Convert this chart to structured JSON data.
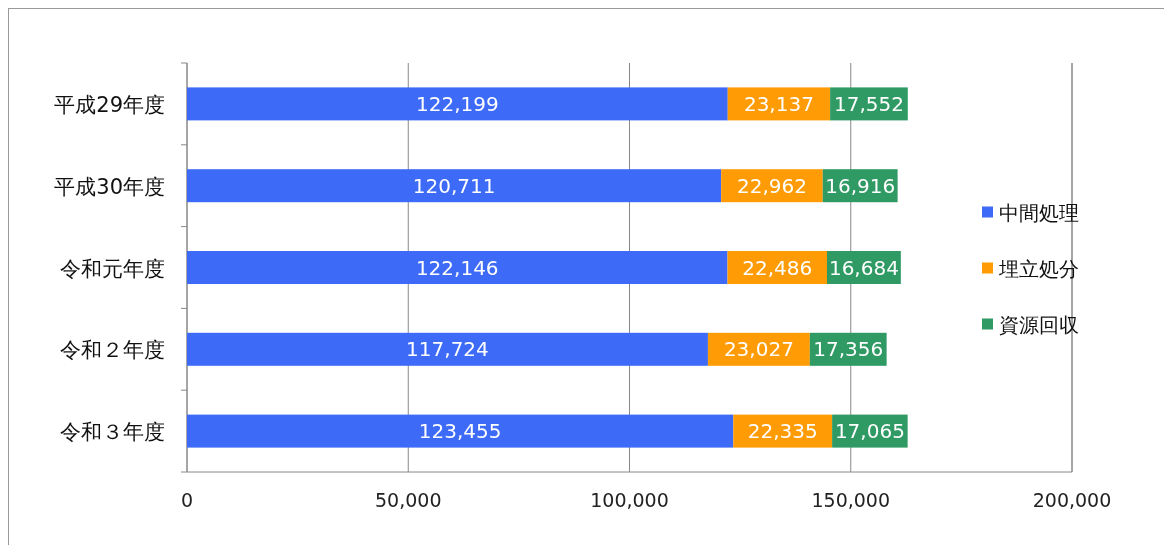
{
  "chart_data": {
    "type": "bar",
    "orientation": "horizontal",
    "stacked": true,
    "categories": [
      "平成29年度",
      "平成30年度",
      "令和元年度",
      "令和２年度",
      "令和３年度"
    ],
    "series": [
      {
        "name": "中間処理",
        "color": "#3d6bf7",
        "values": [
          122199,
          120711,
          122146,
          117724,
          123455
        ],
        "value_labels": [
          "122,199",
          "120,711",
          "122,146",
          "117,724",
          "123,455"
        ]
      },
      {
        "name": "埋立処分",
        "color": "#ff9b05",
        "values": [
          23137,
          22962,
          22486,
          23027,
          22335
        ],
        "value_labels": [
          "23,137",
          "22,962",
          "22,486",
          "23,027",
          "22,335"
        ]
      },
      {
        "name": "資源回収",
        "color": "#2f9a64",
        "values": [
          17552,
          16916,
          16684,
          17356,
          17065
        ],
        "value_labels": [
          "17,552",
          "16,916",
          "16,684",
          "17,356",
          "17,065"
        ]
      }
    ],
    "xlim": [
      0,
      200000
    ],
    "xticks": [
      0,
      {
        "value": 50000,
        "label": "50,000"
      },
      {
        "value": 100000,
        "label": "100,000"
      },
      {
        "value": 150000,
        "label": "150,000"
      },
      {
        "value": 200000,
        "label": "200,000"
      }
    ],
    "grid": "x",
    "legend": "right"
  }
}
